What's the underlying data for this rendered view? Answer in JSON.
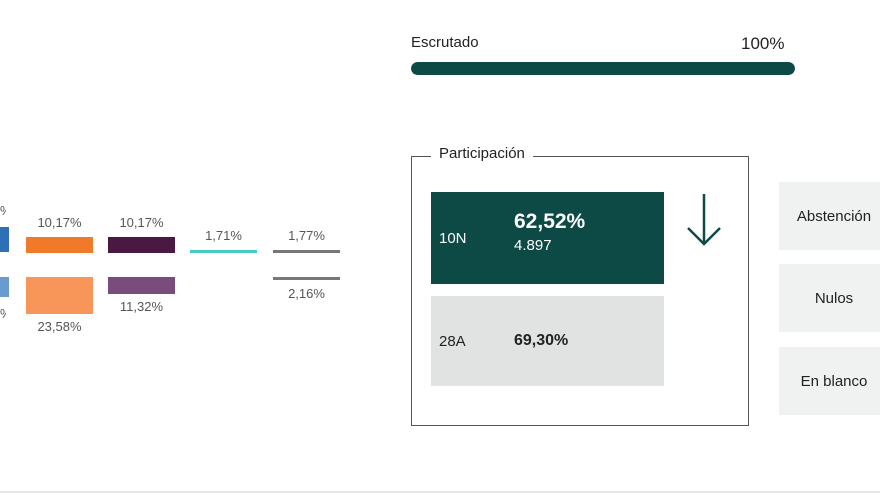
{
  "scrutiny": {
    "label": "Escrutado",
    "value": "100%",
    "progress_fraction": 1.0
  },
  "party_bars": {
    "top": [
      "10,17%",
      "10,17%",
      "1,71%",
      "1,77%"
    ],
    "bottom": [
      "23,58%",
      "11,32%",
      "2,16%"
    ]
  },
  "participation": {
    "title": "Participación",
    "current": {
      "label": "10N",
      "percent": "62,52%",
      "votes": "4.897"
    },
    "previous": {
      "label": "28A",
      "percent": "69,30%"
    }
  },
  "side": {
    "abstention": "Abstención",
    "null": "Nulos",
    "blank": "En blanco"
  },
  "colors": {
    "accent": "#0e4a45",
    "blue": "#2f6fb5",
    "orange": "#f07a2a",
    "light_orange": "#f8965a",
    "purple": "#4a1840",
    "light_purple": "#7a4c7d",
    "teal": "#47c9c4",
    "gray": "#777777"
  }
}
